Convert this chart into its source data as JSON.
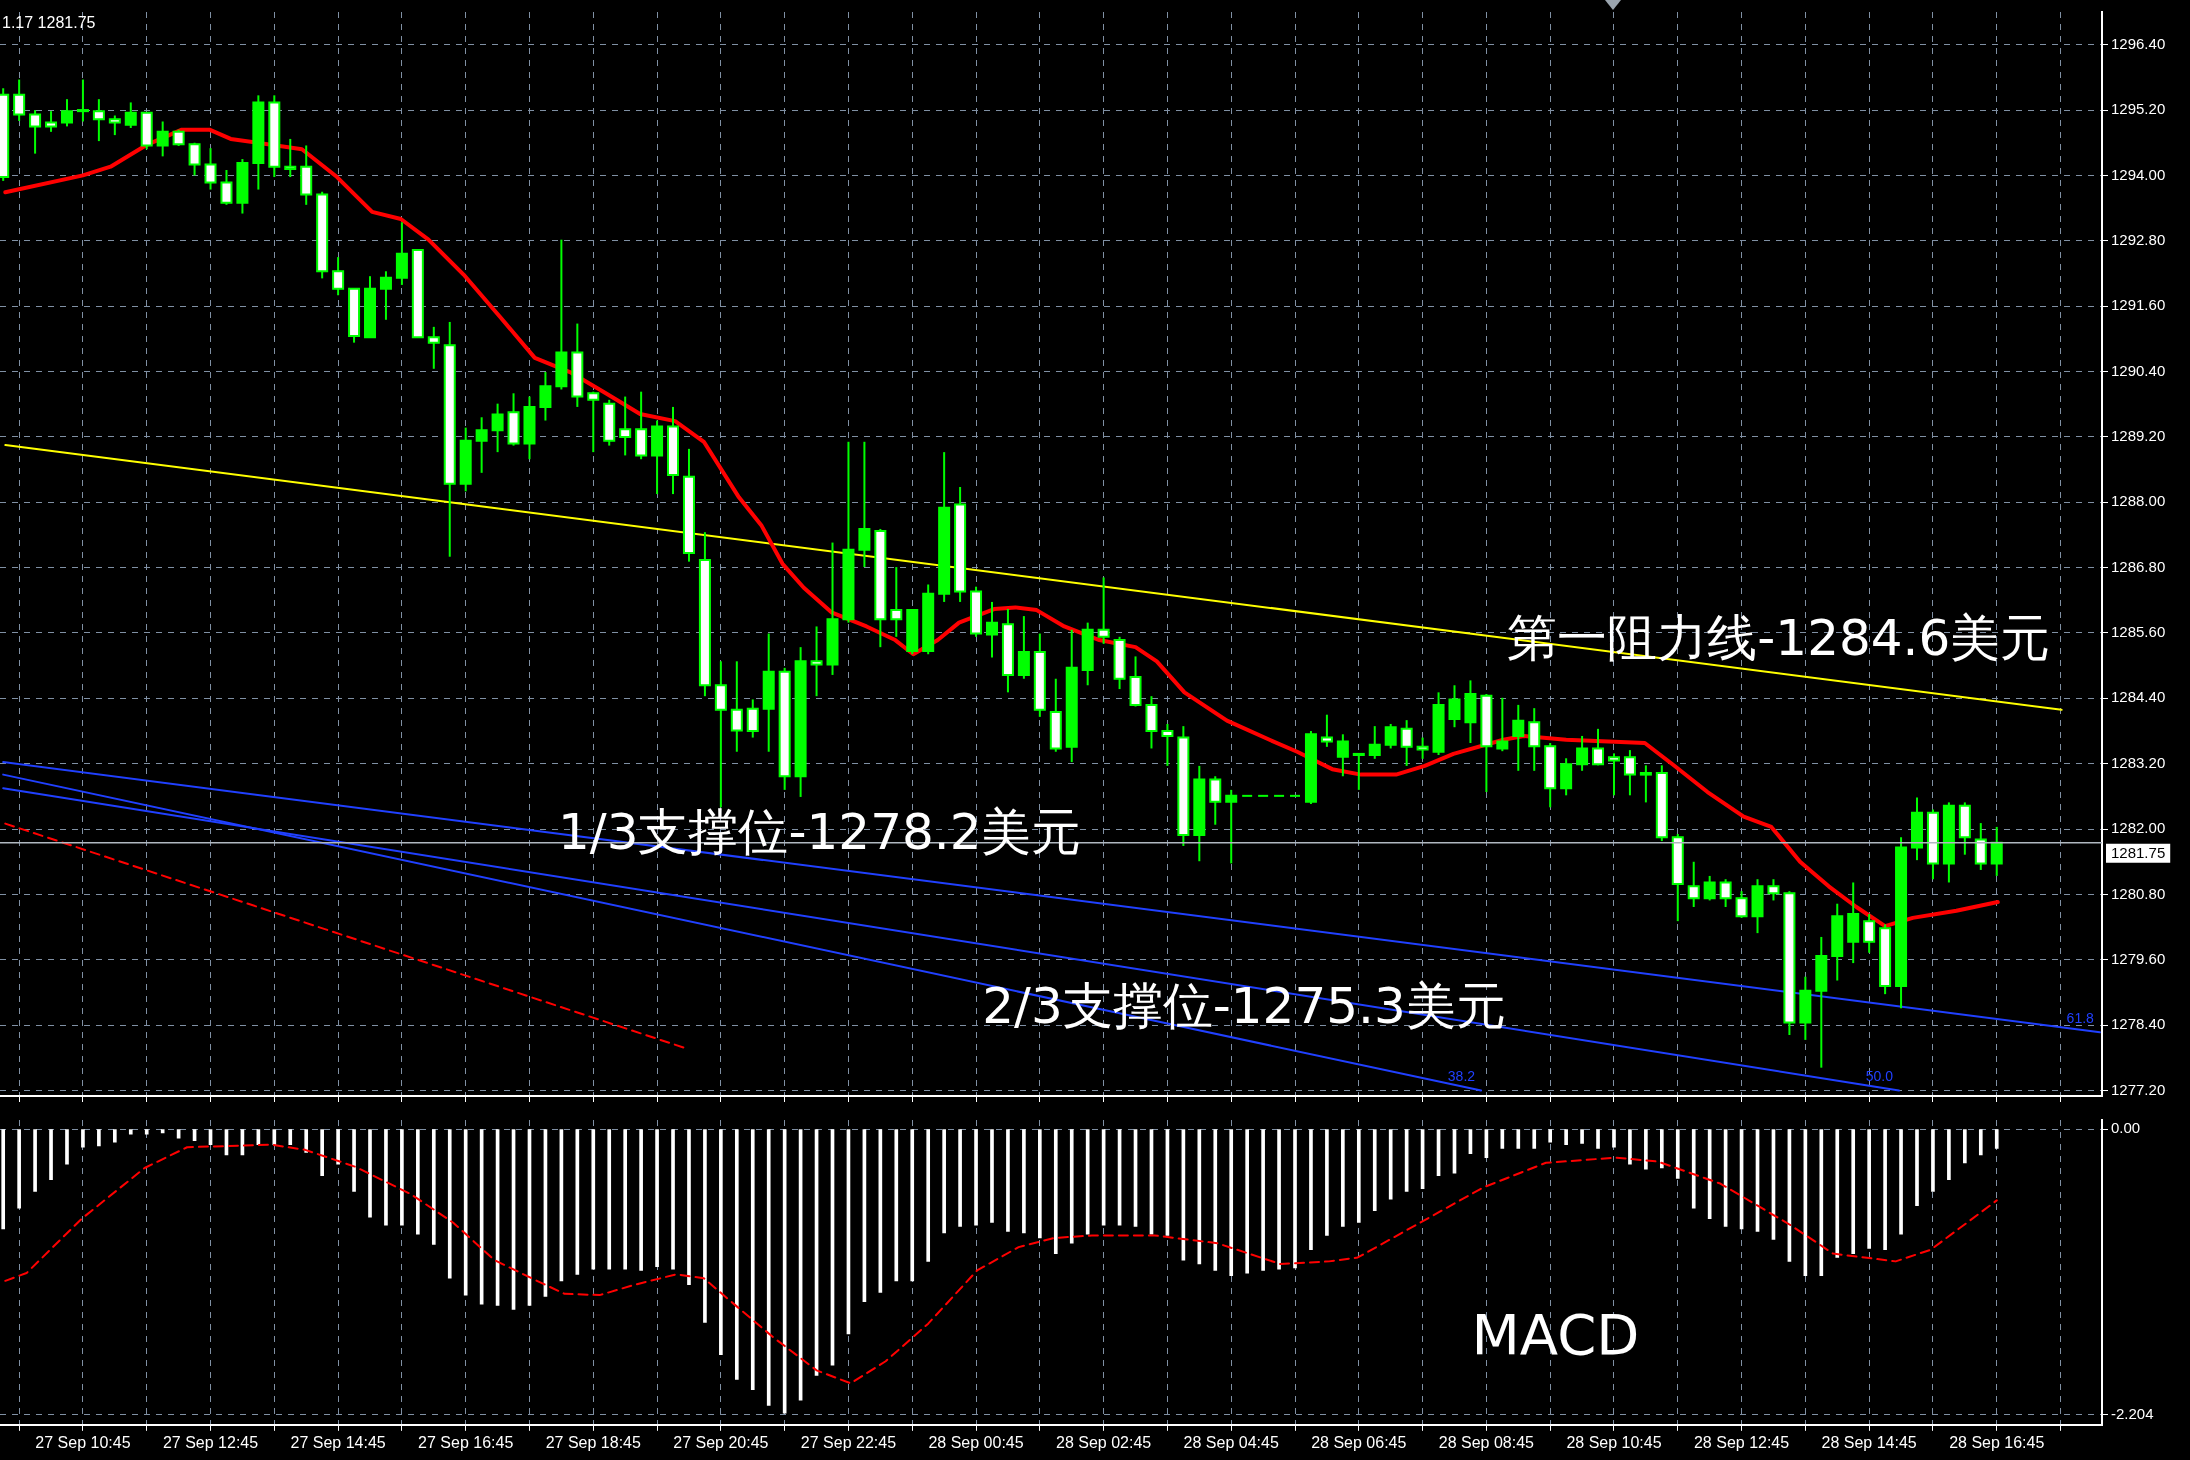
{
  "chart_data": [
    {
      "type": "candlestick",
      "color": "#00ff00",
      "colors": [
        "#ffffff",
        "#ffffff",
        "#ffffff",
        "#ffffff",
        "#00ff00",
        "#00ff00",
        "#ffffff",
        "#ffffff",
        "#00ff00",
        "#ffffff",
        "#00ff00",
        "#ffffff",
        "#ffffff",
        "#ffffff",
        "#ffffff",
        "#00ff00",
        "#00ff00",
        "#ffffff",
        "#ffffff",
        "#ffffff",
        "#ffffff",
        "#ffffff",
        "#ffffff",
        "#00ff00",
        "#00ff00",
        "#00ff00",
        "#ffffff",
        "#ffffff",
        "#ffffff",
        "#00ff00",
        "#00ff00",
        "#00ff00",
        "#ffffff",
        "#00ff00",
        "#00ff00",
        "#00ff00",
        "#ffffff",
        "#ffffff",
        "#ffffff",
        "#ffffff",
        "#ffffff",
        "#00ff00",
        "#ffffff",
        "#ffffff",
        "#ffffff",
        "#ffffff",
        "#ffffff",
        "#ffffff",
        "#00ff00",
        "#ffffff",
        "#00ff00",
        "#ffffff",
        "#00ff00",
        "#00ff00",
        "#00ff00",
        "#ffffff",
        "#ffffff",
        "#00ff00",
        "#00ff00",
        "#00ff00",
        "#ffffff",
        "#ffffff",
        "#00ff00",
        "#ffffff",
        "#00ff00",
        "#ffffff",
        "#ffffff",
        "#00ff00",
        "#00ff00",
        "#ffffff",
        "#ffffff",
        "#ffffff",
        "#ffffff",
        "#ffffff",
        "#ffffff",
        "#00ff00",
        "#ffffff",
        "#00ff00",
        "#00ff00",
        "#00ff00",
        "#00ff00",
        "#00ff00",
        "#00ff00",
        "#ffffff",
        "#00ff00",
        "#00ff00",
        "#00ff00",
        "#00ff00",
        "#ffffff",
        "#ffffff",
        "#00ff00",
        "#00ff00",
        "#00ff00",
        "#ffffff",
        "#00ff00",
        "#00ff00",
        "#ffffff",
        "#ffffff",
        "#00ff00",
        "#00ff00",
        "#ffffff",
        "#ffffff",
        "#ffffff",
        "#ffffff",
        "#ffffff",
        "#ffffff",
        "#ffffff",
        "#00ff00",
        "#ffffff",
        "#ffffff",
        "#00ff00",
        "#ffffff",
        "#ffffff",
        "#00ff00",
        "#00ff00",
        "#00ff00",
        "#00ff00",
        "#ffffff",
        "#ffffff",
        "#00ff00",
        "#00ff00",
        "#ffffff",
        "#00ff00",
        "#ffffff",
        "#ffffff",
        "#00ff00"
      ],
      "xlim": [
        "--09-27T09:27",
        "--09-28T18:24"
      ],
      "ylim": [
        1277.1,
        1297.0
      ],
      "tick_labels": "y",
      "grid": true,
      "xticks": [
        {
          "value": "--09-27T09:45",
          "label": null
        },
        {
          "value": "--09-27T10:45",
          "label": null
        },
        {
          "value": "--09-27T11:45",
          "label": null
        },
        {
          "value": "--09-27T12:45",
          "label": null
        },
        {
          "value": "--09-27T13:45",
          "label": null
        },
        {
          "value": "--09-27T14:45",
          "label": null
        },
        {
          "value": "--09-27T15:45",
          "label": null
        },
        {
          "value": "--09-27T16:45",
          "label": null
        },
        {
          "value": "--09-27T17:45",
          "label": null
        },
        {
          "value": "--09-27T18:45",
          "label": null
        },
        {
          "value": "--09-27T19:45",
          "label": null
        },
        {
          "value": "--09-27T20:45",
          "label": null
        },
        {
          "value": "--09-27T21:45",
          "label": null
        },
        {
          "value": "--09-27T22:45",
          "label": null
        },
        {
          "value": "--09-27T23:45",
          "label": null
        },
        {
          "value": "--09-28T00:45",
          "label": null
        },
        {
          "value": "--09-28T01:45",
          "label": null
        },
        {
          "value": "--09-28T02:45",
          "label": null
        },
        {
          "value": "--09-28T03:45",
          "label": null
        },
        {
          "value": "--09-28T04:45",
          "label": null
        },
        {
          "value": "--09-28T05:45",
          "label": null
        },
        {
          "value": "--09-28T06:45",
          "label": null
        },
        {
          "value": "--09-28T07:45",
          "label": null
        },
        {
          "value": "--09-28T08:45",
          "label": null
        },
        {
          "value": "--09-28T09:45",
          "label": null
        },
        {
          "value": "--09-28T10:45",
          "label": null
        },
        {
          "value": "--09-28T11:45",
          "label": null
        },
        {
          "value": "--09-28T12:45",
          "label": null
        },
        {
          "value": "--09-28T13:45",
          "label": null
        },
        {
          "value": "--09-28T14:45",
          "label": null
        },
        {
          "value": "--09-28T15:45",
          "label": null
        },
        {
          "value": "--09-28T16:45",
          "label": null
        },
        {
          "value": "--09-28T17:45",
          "label": null
        }
      ],
      "yticks": [
        {
          "value": 1277.2,
          "label": "1277.20"
        },
        {
          "value": 1278.4,
          "label": "1278.40"
        },
        {
          "value": 1279.6,
          "label": "1279.60"
        },
        {
          "value": 1280.8,
          "label": "1280.80"
        },
        {
          "value": 1282.0,
          "label": "1282.00"
        },
        {
          "value": 1283.2,
          "label": "1283.20"
        },
        {
          "value": 1284.4,
          "label": "1284.40"
        },
        {
          "value": 1285.6,
          "label": "1285.60"
        },
        {
          "value": 1286.8,
          "label": "1286.80"
        },
        {
          "value": 1288.0,
          "label": "1288.00"
        },
        {
          "value": 1289.2,
          "label": "1289.20"
        },
        {
          "value": 1290.4,
          "label": "1290.40"
        },
        {
          "value": 1291.6,
          "label": "1291.60"
        },
        {
          "value": 1292.8,
          "label": "1292.80"
        },
        {
          "value": 1294.0,
          "label": "1294.00"
        },
        {
          "value": 1295.2,
          "label": "1295.20"
        },
        {
          "value": 1296.4,
          "label": "1296.40"
        }
      ],
      "x": [
        "--09-27T09:30",
        "--09-27T09:45",
        "--09-27T10:00",
        "--09-27T10:15",
        "--09-27T10:30",
        "--09-27T10:45",
        "--09-27T11:00",
        "--09-27T11:15",
        "--09-27T11:30",
        "--09-27T11:45",
        "--09-27T12:00",
        "--09-27T12:15",
        "--09-27T12:30",
        "--09-27T12:45",
        "--09-27T13:00",
        "--09-27T13:15",
        "--09-27T13:30",
        "--09-27T13:45",
        "--09-27T14:00",
        "--09-27T14:15",
        "--09-27T14:30",
        "--09-27T14:45",
        "--09-27T15:00",
        "--09-27T15:15",
        "--09-27T15:30",
        "--09-27T15:45",
        "--09-27T16:00",
        "--09-27T16:15",
        "--09-27T16:30",
        "--09-27T16:45",
        "--09-27T17:00",
        "--09-27T17:15",
        "--09-27T17:30",
        "--09-27T17:45",
        "--09-27T18:00",
        "--09-27T18:15",
        "--09-27T18:30",
        "--09-27T18:45",
        "--09-27T19:00",
        "--09-27T19:15",
        "--09-27T19:30",
        "--09-27T19:45",
        "--09-27T20:00",
        "--09-27T20:15",
        "--09-27T20:30",
        "--09-27T20:45",
        "--09-27T21:00",
        "--09-27T21:15",
        "--09-27T21:30",
        "--09-27T21:45",
        "--09-27T22:00",
        "--09-27T22:15",
        "--09-27T22:30",
        "--09-27T22:45",
        "--09-27T23:00",
        "--09-27T23:15",
        "--09-27T23:30",
        "--09-27T23:45",
        "--09-28T00:00",
        "--09-28T00:15",
        "--09-28T00:30",
        "--09-28T00:45",
        "--09-28T01:00",
        "--09-28T01:15",
        "--09-28T01:30",
        "--09-28T01:45",
        "--09-28T02:00",
        "--09-28T02:15",
        "--09-28T02:30",
        "--09-28T02:45",
        "--09-28T03:00",
        "--09-28T03:15",
        "--09-28T03:30",
        "--09-28T03:45",
        "--09-28T04:00",
        "--09-28T04:15",
        "--09-28T04:30",
        "--09-28T04:45",
        "--09-28T05:00",
        "--09-28T05:15",
        "--09-28T05:30",
        "--09-28T05:45",
        "--09-28T06:00",
        "--09-28T06:15",
        "--09-28T06:30",
        "--09-28T06:45",
        "--09-28T07:00",
        "--09-28T07:15",
        "--09-28T07:30",
        "--09-28T07:45",
        "--09-28T08:00",
        "--09-28T08:15",
        "--09-28T08:30",
        "--09-28T08:45",
        "--09-28T09:00",
        "--09-28T09:15",
        "--09-28T09:30",
        "--09-28T09:45",
        "--09-28T10:00",
        "--09-28T10:15",
        "--09-28T10:30",
        "--09-28T10:45",
        "--09-28T11:00",
        "--09-28T11:15",
        "--09-28T11:30",
        "--09-28T11:45",
        "--09-28T12:00",
        "--09-28T12:15",
        "--09-28T12:30",
        "--09-28T12:45",
        "--09-28T13:00",
        "--09-28T13:15",
        "--09-28T13:30",
        "--09-28T13:45",
        "--09-28T14:00",
        "--09-28T14:15",
        "--09-28T14:30",
        "--09-28T14:45",
        "--09-28T15:00",
        "--09-28T15:15",
        "--09-28T15:30",
        "--09-28T15:45",
        "--09-28T16:00",
        "--09-28T16:15",
        "--09-28T16:30",
        "--09-28T16:45"
      ],
      "ohlc": [
        [
          1295.48,
          1295.6,
          1293.9,
          1293.97
        ],
        [
          1295.48,
          1295.76,
          1295.0,
          1295.12
        ],
        [
          1295.12,
          1295.2,
          1294.4,
          1294.9
        ],
        [
          1294.97,
          1295.18,
          1294.8,
          1294.9
        ],
        [
          1294.97,
          1295.4,
          1294.9,
          1295.18
        ],
        [
          1295.18,
          1295.76,
          1294.99,
          1295.2
        ],
        [
          1295.18,
          1295.4,
          1294.63,
          1295.03
        ],
        [
          1295.03,
          1295.1,
          1294.74,
          1294.97
        ],
        [
          1294.93,
          1295.34,
          1294.87,
          1295.15
        ],
        [
          1295.15,
          1295.15,
          1294.48,
          1294.55
        ],
        [
          1294.55,
          1294.99,
          1294.35,
          1294.8
        ],
        [
          1294.8,
          1294.84,
          1294.54,
          1294.57
        ],
        [
          1294.57,
          1294.6,
          1294.0,
          1294.2
        ],
        [
          1294.2,
          1294.5,
          1293.74,
          1293.87
        ],
        [
          1293.87,
          1294.1,
          1293.46,
          1293.5
        ],
        [
          1293.5,
          1294.3,
          1293.3,
          1294.23
        ],
        [
          1294.23,
          1295.47,
          1293.74,
          1295.34
        ],
        [
          1295.34,
          1295.47,
          1293.97,
          1294.16
        ],
        [
          1294.16,
          1294.67,
          1293.97,
          1294.12
        ],
        [
          1294.16,
          1294.55,
          1293.46,
          1293.65
        ],
        [
          1293.65,
          1293.7,
          1292.11,
          1292.24
        ],
        [
          1292.24,
          1292.5,
          1291.8,
          1291.92
        ],
        [
          1291.92,
          1291.92,
          1290.93,
          1291.05
        ],
        [
          1291.03,
          1292.15,
          1291.03,
          1291.92
        ],
        [
          1291.92,
          1292.24,
          1291.35,
          1292.12
        ],
        [
          1292.12,
          1293.14,
          1291.99,
          1292.56
        ],
        [
          1292.63,
          1292.63,
          1291.03,
          1291.03
        ],
        [
          1291.03,
          1291.22,
          1290.45,
          1290.93
        ],
        [
          1290.88,
          1291.31,
          1287.0,
          1288.34
        ],
        [
          1288.34,
          1289.37,
          1288.2,
          1289.13
        ],
        [
          1289.13,
          1289.56,
          1288.54,
          1289.32
        ],
        [
          1289.32,
          1289.81,
          1288.92,
          1289.61
        ],
        [
          1289.65,
          1290.0,
          1289.04,
          1289.08
        ],
        [
          1289.08,
          1289.94,
          1288.79,
          1289.75
        ],
        [
          1289.75,
          1290.39,
          1289.5,
          1290.13
        ],
        [
          1290.13,
          1292.82,
          1290.07,
          1290.75
        ],
        [
          1290.75,
          1291.28,
          1289.75,
          1289.94
        ],
        [
          1290.0,
          1290.03,
          1288.92,
          1289.88
        ],
        [
          1289.81,
          1289.88,
          1289.04,
          1289.13
        ],
        [
          1289.34,
          1289.94,
          1288.86,
          1289.2
        ],
        [
          1289.34,
          1290.03,
          1288.79,
          1288.86
        ],
        [
          1288.86,
          1289.5,
          1288.15,
          1289.39
        ],
        [
          1289.39,
          1289.75,
          1288.15,
          1288.5
        ],
        [
          1288.47,
          1288.98,
          1286.91,
          1287.07
        ],
        [
          1286.94,
          1287.45,
          1284.44,
          1284.64
        ],
        [
          1284.64,
          1285.08,
          1282.4,
          1284.19
        ],
        [
          1284.19,
          1285.08,
          1283.42,
          1283.81
        ],
        [
          1284.21,
          1284.38,
          1283.68,
          1283.8
        ],
        [
          1284.21,
          1285.59,
          1283.42,
          1284.89
        ],
        [
          1284.89,
          1284.96,
          1282.72,
          1282.97
        ],
        [
          1282.97,
          1285.34,
          1282.59,
          1285.08
        ],
        [
          1285.08,
          1285.72,
          1284.44,
          1285.02
        ],
        [
          1285.02,
          1287.26,
          1284.83,
          1285.85
        ],
        [
          1285.85,
          1289.11,
          1285.79,
          1287.13
        ],
        [
          1287.13,
          1289.11,
          1286.81,
          1287.51
        ],
        [
          1287.47,
          1287.51,
          1285.34,
          1285.85
        ],
        [
          1286.02,
          1286.81,
          1285.53,
          1285.85
        ],
        [
          1285.27,
          1286.04,
          1285.21,
          1286.02
        ],
        [
          1285.27,
          1286.49,
          1285.21,
          1286.32
        ],
        [
          1286.32,
          1288.92,
          1286.17,
          1287.9
        ],
        [
          1287.96,
          1288.28,
          1286.17,
          1286.36
        ],
        [
          1286.36,
          1286.45,
          1285.53,
          1285.59
        ],
        [
          1285.57,
          1286.17,
          1285.15,
          1285.79
        ],
        [
          1285.76,
          1286.04,
          1284.51,
          1284.83
        ],
        [
          1284.83,
          1285.91,
          1284.76,
          1285.25
        ],
        [
          1285.25,
          1285.59,
          1284.06,
          1284.19
        ],
        [
          1284.15,
          1284.76,
          1283.42,
          1283.48
        ],
        [
          1283.51,
          1285.66,
          1283.23,
          1284.96
        ],
        [
          1284.92,
          1285.79,
          1284.64,
          1285.66
        ],
        [
          1285.66,
          1286.62,
          1285.4,
          1285.53
        ],
        [
          1285.47,
          1285.53,
          1284.57,
          1284.76
        ],
        [
          1284.79,
          1285.17,
          1284.25,
          1284.28
        ],
        [
          1284.28,
          1284.44,
          1283.48,
          1283.8
        ],
        [
          1283.8,
          1283.93,
          1283.16,
          1283.71
        ],
        [
          1283.68,
          1283.89,
          1281.69,
          1281.89
        ],
        [
          1281.89,
          1283.16,
          1281.41,
          1282.91
        ],
        [
          1282.91,
          1282.97,
          1282.08,
          1282.5
        ],
        [
          1282.5,
          1282.72,
          1281.37,
          1282.61
        ],
        [
          1282.61,
          1282.61,
          1282.61,
          1282.61
        ],
        [
          1282.61,
          1282.61,
          1282.61,
          1282.61
        ],
        [
          1282.61,
          1282.61,
          1282.61,
          1282.61
        ],
        [
          1282.61,
          1282.61,
          1282.61,
          1282.61
        ],
        [
          1282.5,
          1283.8,
          1282.46,
          1283.74
        ],
        [
          1283.68,
          1284.1,
          1283.51,
          1283.61
        ],
        [
          1283.33,
          1283.74,
          1282.97,
          1283.61
        ],
        [
          1283.36,
          1283.38,
          1282.72,
          1283.38
        ],
        [
          1283.36,
          1283.89,
          1283.29,
          1283.55
        ],
        [
          1283.55,
          1283.93,
          1283.48,
          1283.87
        ],
        [
          1283.84,
          1284.0,
          1283.16,
          1283.51
        ],
        [
          1283.51,
          1283.68,
          1283.29,
          1283.46
        ],
        [
          1283.42,
          1284.51,
          1283.36,
          1284.28
        ],
        [
          1284.02,
          1284.64,
          1283.87,
          1284.38
        ],
        [
          1283.96,
          1284.73,
          1283.58,
          1284.48
        ],
        [
          1284.45,
          1284.48,
          1282.68,
          1283.52
        ],
        [
          1283.48,
          1284.41,
          1283.43,
          1283.61
        ],
        [
          1283.71,
          1284.28,
          1283.07,
          1283.99
        ],
        [
          1283.96,
          1284.22,
          1283.07,
          1283.52
        ],
        [
          1283.52,
          1283.58,
          1282.4,
          1282.75
        ],
        [
          1282.75,
          1283.3,
          1282.62,
          1283.19
        ],
        [
          1283.19,
          1283.71,
          1283.07,
          1283.48
        ],
        [
          1283.48,
          1283.84,
          1283.17,
          1283.19
        ],
        [
          1283.32,
          1283.39,
          1282.62,
          1283.26
        ],
        [
          1283.32,
          1283.45,
          1282.62,
          1283.0
        ],
        [
          1283.03,
          1283.17,
          1282.49,
          1283.0
        ],
        [
          1283.03,
          1283.17,
          1281.78,
          1281.85
        ],
        [
          1281.85,
          1281.91,
          1280.31,
          1280.99
        ],
        [
          1280.95,
          1281.4,
          1280.57,
          1280.73
        ],
        [
          1280.73,
          1281.14,
          1280.69,
          1281.02
        ],
        [
          1281.02,
          1281.08,
          1280.57,
          1280.73
        ],
        [
          1280.73,
          1280.86,
          1280.37,
          1280.4
        ],
        [
          1280.4,
          1281.08,
          1280.09,
          1280.95
        ],
        [
          1280.95,
          1281.08,
          1280.69,
          1280.82
        ],
        [
          1280.82,
          1280.86,
          1278.22,
          1278.45
        ],
        [
          1278.45,
          1279.29,
          1278.13,
          1279.03
        ],
        [
          1279.03,
          1280.02,
          1277.62,
          1279.67
        ],
        [
          1279.67,
          1280.63,
          1279.22,
          1280.4
        ],
        [
          1279.93,
          1281.02,
          1279.54,
          1280.44
        ],
        [
          1280.31,
          1280.44,
          1279.73,
          1279.93
        ],
        [
          1280.18,
          1280.25,
          1278.97,
          1279.12
        ],
        [
          1279.12,
          1281.85,
          1278.71,
          1281.66
        ],
        [
          1281.66,
          1282.58,
          1281.43,
          1282.3
        ],
        [
          1282.3,
          1282.36,
          1281.08,
          1281.37
        ],
        [
          1281.37,
          1282.49,
          1281.02,
          1282.43
        ],
        [
          1282.43,
          1282.49,
          1281.53,
          1281.85
        ],
        [
          1281.81,
          1282.11,
          1281.25,
          1281.37
        ],
        [
          1281.37,
          1282.04,
          1281.14,
          1281.75
        ]
      ],
      "series": [
        {
          "type": "line",
          "color": "#ff0000",
          "x": [
            "--09-27T09:32",
            "--09-27T10:45",
            "--09-27T11:11",
            "--09-27T11:44",
            "--09-27T12:18",
            "--09-27T12:44",
            "--09-27T13:04",
            "--09-27T14:11",
            "--09-27T14:44",
            "--09-27T15:17",
            "--09-27T15:44",
            "--09-27T16:10",
            "--09-27T16:43",
            "--09-27T17:17",
            "--09-27T17:50",
            "--09-27T18:23",
            "--09-27T18:56",
            "--09-27T19:29",
            "--09-27T20:02",
            "--09-27T20:29",
            "--09-27T21:02",
            "--09-27T21:23",
            "--09-27T21:43",
            "--09-27T22:03",
            "--09-27T22:29",
            "--09-27T23:02",
            "--09-27T23:29",
            "--09-27T23:46",
            "--09-28T00:09",
            "--09-28T00:29",
            "--09-28T01:02",
            "--09-28T01:22",
            "--09-28T01:42",
            "--09-28T02:08",
            "--09-28T02:41",
            "--09-28T03:15",
            "--09-28T03:35",
            "--09-28T04:01",
            "--09-28T04:41",
            "--09-28T05:21",
            "--09-28T05:47",
            "--09-28T06:20",
            "--09-28T06:47",
            "--09-28T07:20",
            "--09-28T07:47",
            "--09-28T08:14",
            "--09-28T09:01",
            "--09-28T09:20",
            "--09-28T10:00",
            "--09-28T11:14",
            "--09-28T11:40",
            "--09-28T12:13",
            "--09-28T12:47",
            "--09-28T13:13",
            "--09-28T13:40",
            "--09-28T14:07",
            "--09-28T14:33",
            "--09-28T15:00",
            "--09-28T15:26",
            "--09-28T16:07",
            "--09-28T16:46"
          ],
          "values": [
            1293.69,
            1294.0,
            1294.16,
            1294.55,
            1294.84,
            1294.84,
            1294.67,
            1294.48,
            1293.97,
            1293.33,
            1293.2,
            1292.82,
            1292.18,
            1291.41,
            1290.65,
            1290.39,
            1290.01,
            1289.62,
            1289.49,
            1289.11,
            1288.09,
            1287.58,
            1286.87,
            1286.43,
            1285.98,
            1285.72,
            1285.47,
            1285.21,
            1285.47,
            1285.79,
            1286.04,
            1286.07,
            1286.02,
            1285.72,
            1285.47,
            1285.34,
            1285.08,
            1284.51,
            1283.99,
            1283.64,
            1283.42,
            1283.1,
            1283.0,
            1283.0,
            1283.16,
            1283.38,
            1283.64,
            1283.71,
            1283.64,
            1283.58,
            1283.19,
            1282.68,
            1282.23,
            1282.04,
            1281.4,
            1280.95,
            1280.57,
            1280.22,
            1280.37,
            1280.5,
            1280.66
          ]
        },
        {
          "type": "line",
          "color": "#ffff00",
          "x": [
            "--09-27T09:32",
            "--09-28T17:46"
          ],
          "values": [
            1289.05,
            1284.19
          ]
        },
        {
          "type": "line",
          "name": "61.8",
          "color": "#2040ff",
          "x": [
            "--09-27T09:30",
            "--09-28T18:22"
          ],
          "values": [
            1283.23,
            1278.27
          ]
        },
        {
          "type": "line",
          "name": "50.0",
          "color": "#2040ff",
          "x": [
            "--09-27T09:30",
            "--09-28T15:13"
          ],
          "values": [
            1282.75,
            1277.2
          ]
        },
        {
          "type": "line",
          "name": "38.2",
          "color": "#2040ff",
          "x": [
            "--09-27T09:30",
            "--09-28T08:40"
          ],
          "values": [
            1283.0,
            1277.2
          ]
        },
        {
          "type": "line",
          "color": "#ff0000",
          "line_style": "dashed",
          "x": [
            "--09-27T09:32",
            "--09-27T20:13"
          ],
          "values": [
            1282.1,
            1277.97
          ]
        }
      ],
      "ref_lines": [
        {
          "axis": "y",
          "value": 1281.75,
          "label": "1281.75",
          "color": "#b0b8c0"
        }
      ],
      "annotations": [
        "1.17 1281.75",
        {
          "text": "第一阻力线-1284.6美元",
          "x": "--09-28T13:20",
          "y": 1284.86
        },
        {
          "text": "1/3支撑位-1278.2美元",
          "x": "--09-27T22:18",
          "y": 1281.3
        },
        {
          "text": "2/3支撑位-1275.3美元",
          "x": "--09-28T04:57",
          "y": 1278.11
        }
      ]
    },
    {
      "type": "bar",
      "xlim": [
        "--09-27T09:27",
        "--09-28T18:24"
      ],
      "ylim": [
        -2.28,
        0.07
      ],
      "grid": true,
      "xticks": [
        {
          "value": "--09-27T09:45",
          "label": null
        },
        {
          "value": "--09-27T10:45",
          "label": "27 Sep 10:45"
        },
        {
          "value": "--09-27T11:45",
          "label": null
        },
        {
          "value": "--09-27T12:45",
          "label": "27 Sep 12:45"
        },
        {
          "value": "--09-27T13:45",
          "label": null
        },
        {
          "value": "--09-27T14:45",
          "label": "27 Sep 14:45"
        },
        {
          "value": "--09-27T15:45",
          "label": null
        },
        {
          "value": "--09-27T16:45",
          "label": "27 Sep 16:45"
        },
        {
          "value": "--09-27T17:45",
          "label": null
        },
        {
          "value": "--09-27T18:45",
          "label": "27 Sep 18:45"
        },
        {
          "value": "--09-27T19:45",
          "label": null
        },
        {
          "value": "--09-27T20:45",
          "label": "27 Sep 20:45"
        },
        {
          "value": "--09-27T21:45",
          "label": null
        },
        {
          "value": "--09-27T22:45",
          "label": "27 Sep 22:45"
        },
        {
          "value": "--09-27T23:45",
          "label": null
        },
        {
          "value": "--09-28T00:45",
          "label": "28 Sep 00:45"
        },
        {
          "value": "--09-28T01:45",
          "label": null
        },
        {
          "value": "--09-28T02:45",
          "label": "28 Sep 02:45"
        },
        {
          "value": "--09-28T03:45",
          "label": null
        },
        {
          "value": "--09-28T04:45",
          "label": "28 Sep 04:45"
        },
        {
          "value": "--09-28T05:45",
          "label": null
        },
        {
          "value": "--09-28T06:45",
          "label": "28 Sep 06:45"
        },
        {
          "value": "--09-28T07:45",
          "label": null
        },
        {
          "value": "--09-28T08:45",
          "label": "28 Sep 08:45"
        },
        {
          "value": "--09-28T09:45",
          "label": null
        },
        {
          "value": "--09-28T10:45",
          "label": "28 Sep 10:45"
        },
        {
          "value": "--09-28T11:45",
          "label": null
        },
        {
          "value": "--09-28T12:45",
          "label": "28 Sep 12:45"
        },
        {
          "value": "--09-28T13:45",
          "label": null
        },
        {
          "value": "--09-28T14:45",
          "label": "28 Sep 14:45"
        },
        {
          "value": "--09-28T15:45",
          "label": null
        },
        {
          "value": "--09-28T16:45",
          "label": "28 Sep 16:45"
        },
        {
          "value": "--09-28T17:45",
          "label": null
        }
      ],
      "yticks": [
        {
          "value": 0,
          "label": "0.00"
        },
        {
          "value": -2.204,
          "label": "-2.204"
        }
      ],
      "x": [
        "--09-27T09:30",
        "--09-27T09:45",
        "--09-27T10:00",
        "--09-27T10:15",
        "--09-27T10:30",
        "--09-27T10:45",
        "--09-27T11:00",
        "--09-27T11:15",
        "--09-27T11:30",
        "--09-27T11:45",
        "--09-27T12:00",
        "--09-27T12:15",
        "--09-27T12:30",
        "--09-27T12:45",
        "--09-27T13:00",
        "--09-27T13:15",
        "--09-27T13:30",
        "--09-27T13:45",
        "--09-27T14:00",
        "--09-27T14:15",
        "--09-27T14:30",
        "--09-27T14:45",
        "--09-27T15:00",
        "--09-27T15:15",
        "--09-27T15:30",
        "--09-27T15:45",
        "--09-27T16:00",
        "--09-27T16:15",
        "--09-27T16:30",
        "--09-27T16:45",
        "--09-27T17:00",
        "--09-27T17:15",
        "--09-27T17:30",
        "--09-27T17:45",
        "--09-27T18:00",
        "--09-27T18:15",
        "--09-27T18:30",
        "--09-27T18:45",
        "--09-27T19:00",
        "--09-27T19:15",
        "--09-27T19:30",
        "--09-27T19:45",
        "--09-27T20:00",
        "--09-27T20:15",
        "--09-27T20:30",
        "--09-27T20:45",
        "--09-27T21:00",
        "--09-27T21:15",
        "--09-27T21:30",
        "--09-27T21:45",
        "--09-27T22:00",
        "--09-27T22:15",
        "--09-27T22:30",
        "--09-27T22:45",
        "--09-27T23:00",
        "--09-27T23:15",
        "--09-27T23:30",
        "--09-27T23:45",
        "--09-28T00:00",
        "--09-28T00:15",
        "--09-28T00:30",
        "--09-28T00:45",
        "--09-28T01:00",
        "--09-28T01:15",
        "--09-28T01:30",
        "--09-28T01:45",
        "--09-28T02:00",
        "--09-28T02:15",
        "--09-28T02:30",
        "--09-28T02:45",
        "--09-28T03:00",
        "--09-28T03:15",
        "--09-28T03:30",
        "--09-28T03:45",
        "--09-28T04:00",
        "--09-28T04:15",
        "--09-28T04:30",
        "--09-28T04:45",
        "--09-28T05:00",
        "--09-28T05:15",
        "--09-28T05:30",
        "--09-28T05:45",
        "--09-28T06:00",
        "--09-28T06:15",
        "--09-28T06:30",
        "--09-28T06:45",
        "--09-28T07:00",
        "--09-28T07:15",
        "--09-28T07:30",
        "--09-28T07:45",
        "--09-28T08:00",
        "--09-28T08:15",
        "--09-28T08:30",
        "--09-28T08:45",
        "--09-28T09:00",
        "--09-28T09:15",
        "--09-28T09:30",
        "--09-28T09:45",
        "--09-28T10:00",
        "--09-28T10:15",
        "--09-28T10:30",
        "--09-28T10:45",
        "--09-28T11:00",
        "--09-28T11:15",
        "--09-28T11:30",
        "--09-28T11:45",
        "--09-28T12:00",
        "--09-28T12:15",
        "--09-28T12:30",
        "--09-28T12:45",
        "--09-28T13:00",
        "--09-28T13:15",
        "--09-28T13:30",
        "--09-28T13:45",
        "--09-28T14:00",
        "--09-28T14:15",
        "--09-28T14:30",
        "--09-28T14:45",
        "--09-28T15:00",
        "--09-28T15:15",
        "--09-28T15:30",
        "--09-28T15:45",
        "--09-28T16:00",
        "--09-28T16:15",
        "--09-28T16:30",
        "--09-28T16:45"
      ],
      "series": [
        {
          "type": "bar",
          "color": "#ffffff",
          "values": [
            -0.77,
            -0.61,
            -0.48,
            -0.39,
            -0.27,
            -0.14,
            -0.13,
            -0.1,
            -0.04,
            -0.04,
            -0.03,
            -0.07,
            -0.09,
            -0.12,
            -0.2,
            -0.2,
            -0.12,
            -0.12,
            -0.12,
            -0.18,
            -0.36,
            -0.27,
            -0.48,
            -0.68,
            -0.74,
            -0.74,
            -0.81,
            -0.89,
            -1.15,
            -1.28,
            -1.35,
            -1.36,
            -1.39,
            -1.36,
            -1.29,
            -1.17,
            -1.12,
            -1.08,
            -1.08,
            -1.08,
            -1.09,
            -1.06,
            -1.08,
            -1.2,
            -1.49,
            -1.74,
            -1.93,
            -2.01,
            -2.13,
            -2.19,
            -2.09,
            -1.9,
            -1.82,
            -1.58,
            -1.33,
            -1.26,
            -1.17,
            -1.17,
            -1.02,
            -0.8,
            -0.75,
            -0.74,
            -0.72,
            -0.79,
            -0.8,
            -0.84,
            -0.96,
            -0.88,
            -0.81,
            -0.74,
            -0.74,
            -0.75,
            -0.81,
            -0.82,
            -1.01,
            -1.04,
            -1.09,
            -1.13,
            -1.11,
            -1.09,
            -1.08,
            -1.07,
            -0.93,
            -0.82,
            -0.75,
            -0.72,
            -0.63,
            -0.54,
            -0.48,
            -0.46,
            -0.36,
            -0.34,
            -0.19,
            -0.22,
            -0.15,
            -0.15,
            -0.15,
            -0.1,
            -0.12,
            -0.11,
            -0.15,
            -0.14,
            -0.27,
            -0.31,
            -0.3,
            -0.38,
            -0.61,
            -0.69,
            -0.75,
            -0.77,
            -0.79,
            -0.85,
            -1.02,
            -1.13,
            -1.13,
            -0.99,
            -0.96,
            -0.92,
            -0.93,
            -0.81,
            -0.59,
            -0.48,
            -0.39,
            -0.26,
            -0.2,
            -0.15
          ]
        },
        {
          "type": "line",
          "color": "#ff0000",
          "line_style": "dashed",
          "x": [
            "--09-27T09:32",
            "--09-27T09:52",
            "--09-27T10:44",
            "--09-27T11:43",
            "--09-27T12:23",
            "--09-27T13:42",
            "--09-27T14:14",
            "--09-27T15:01",
            "--09-27T15:53",
            "--09-27T16:33",
            "--09-27T17:12",
            "--09-27T17:52",
            "--09-27T18:18",
            "--09-27T18:51",
            "--09-27T19:24",
            "--09-27T20:03",
            "--09-27T20:29",
            "--09-27T20:56",
            "--09-27T21:35",
            "--09-27T22:15",
            "--09-27T22:47",
            "--09-27T23:20",
            "--09-28T00:00",
            "--09-28T00:46",
            "--09-28T01:25",
            "--09-28T01:58",
            "--09-28T02:34",
            "--09-28T03:33",
            "--09-28T04:32",
            "--09-28T05:31",
            "--09-28T06:17",
            "--09-28T06:44",
            "--09-28T07:43",
            "--09-28T08:42",
            "--09-28T09:41",
            "--09-28T10:47",
            "--09-28T11:26",
            "--09-28T12:25",
            "--09-28T13:31",
            "--09-28T14:11",
            "--09-28T15:10",
            "--09-28T15:43",
            "--09-28T16:45"
          ],
          "values": [
            -1.17,
            -1.11,
            -0.69,
            -0.3,
            -0.14,
            -0.12,
            -0.16,
            -0.29,
            -0.5,
            -0.72,
            -1.01,
            -1.17,
            -1.27,
            -1.28,
            -1.2,
            -1.12,
            -1.15,
            -1.34,
            -1.61,
            -1.86,
            -1.96,
            -1.79,
            -1.5,
            -1.09,
            -0.91,
            -0.84,
            -0.82,
            -0.82,
            -0.88,
            -1.04,
            -1.02,
            -0.99,
            -0.72,
            -0.45,
            -0.26,
            -0.22,
            -0.25,
            -0.42,
            -0.74,
            -0.96,
            -1.02,
            -0.93,
            -0.55
          ]
        }
      ],
      "annotations": [
        "MACD"
      ]
    }
  ]
}
